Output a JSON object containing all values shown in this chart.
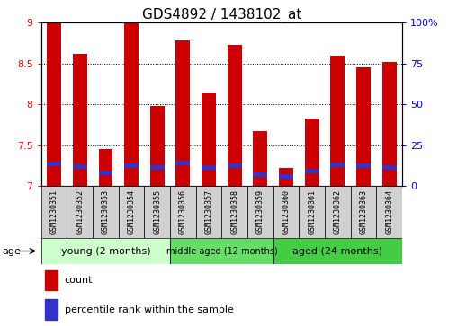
{
  "title": "GDS4892 / 1438102_at",
  "samples": [
    "GSM1230351",
    "GSM1230352",
    "GSM1230353",
    "GSM1230354",
    "GSM1230355",
    "GSM1230356",
    "GSM1230357",
    "GSM1230358",
    "GSM1230359",
    "GSM1230360",
    "GSM1230361",
    "GSM1230362",
    "GSM1230363",
    "GSM1230364"
  ],
  "count_values": [
    9.0,
    8.62,
    7.45,
    9.0,
    7.98,
    8.78,
    8.15,
    8.73,
    7.67,
    7.22,
    7.83,
    8.6,
    8.45,
    8.52
  ],
  "percentile_values": [
    7.27,
    7.24,
    7.16,
    7.25,
    7.22,
    7.28,
    7.22,
    7.25,
    7.14,
    7.12,
    7.18,
    7.26,
    7.25,
    7.23
  ],
  "ymin": 7.0,
  "ymax": 9.0,
  "yticks": [
    7.0,
    7.5,
    8.0,
    8.5,
    9.0
  ],
  "right_yticks": [
    0,
    25,
    50,
    75,
    100
  ],
  "bar_color": "#cc0000",
  "percentile_color": "#3333cc",
  "bar_width": 0.55,
  "group_data": [
    {
      "label": "young (2 months)",
      "start": 0,
      "end": 5,
      "color": "#ccffcc"
    },
    {
      "label": "middle aged (12 months)",
      "start": 5,
      "end": 9,
      "color": "#66dd66"
    },
    {
      "label": "aged (24 months)",
      "start": 9,
      "end": 14,
      "color": "#44cc44"
    }
  ],
  "legend_count_label": "count",
  "legend_pct_label": "percentile rank within the sample",
  "age_label": "age",
  "title_fontsize": 11,
  "ytick_fontsize": 8,
  "sample_fontsize": 6,
  "group_fontsize_large": 8,
  "group_fontsize_small": 7,
  "legend_fontsize": 8,
  "box_color": "#d0d0d0"
}
